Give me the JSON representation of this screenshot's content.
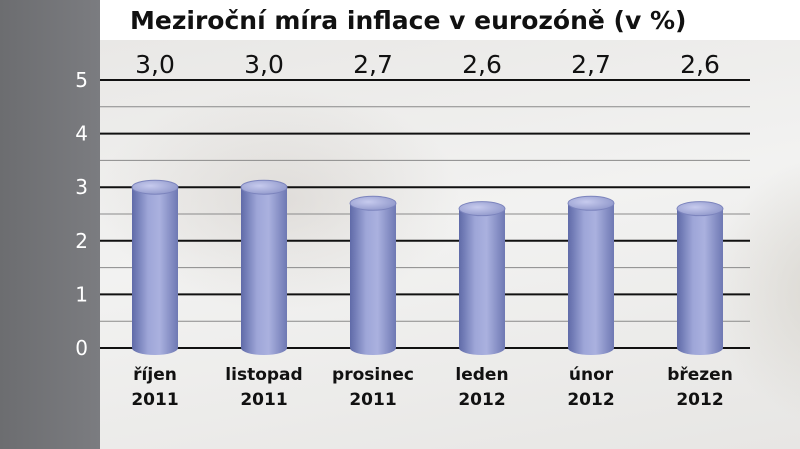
{
  "chart_data": {
    "type": "bar",
    "title": "Meziroční míra inflace v eurozóně (v %)",
    "xlabel": "",
    "ylabel": "",
    "ylim": [
      0,
      5
    ],
    "yticks": [
      "0",
      "1",
      "2",
      "3",
      "4",
      "5"
    ],
    "grid": true,
    "categories": [
      [
        "říjen",
        "2011"
      ],
      [
        "listopad",
        "2011"
      ],
      [
        "prosinec",
        "2011"
      ],
      [
        "leden",
        "2012"
      ],
      [
        "únor",
        "2012"
      ],
      [
        "březen",
        "2012"
      ]
    ],
    "values": [
      3.0,
      3.0,
      2.7,
      2.6,
      2.7,
      2.6
    ],
    "value_labels": [
      "3,0",
      "3,0",
      "2,7",
      "2,6",
      "2,7",
      "2,6"
    ],
    "bar_color": "#8a93c7"
  }
}
